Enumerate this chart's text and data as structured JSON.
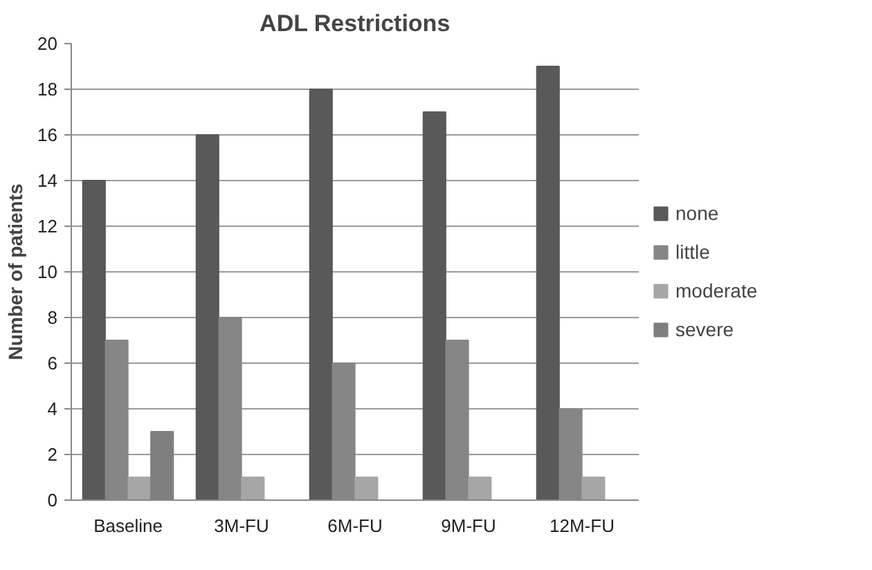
{
  "chart_data": {
    "type": "bar",
    "title": "ADL Restrictions",
    "ylabel": "Number of patients",
    "categories": [
      "Baseline",
      "3M-FU",
      "6M-FU",
      "9M-FU",
      "12M-FU"
    ],
    "series": [
      {
        "name": "none",
        "color": "#595959",
        "values": [
          14,
          16,
          18,
          17,
          19
        ]
      },
      {
        "name": "little",
        "color": "#868686",
        "values": [
          7,
          8,
          6,
          7,
          4
        ]
      },
      {
        "name": "moderate",
        "color": "#a6a6a6",
        "values": [
          1,
          1,
          1,
          1,
          1
        ]
      },
      {
        "name": "severe",
        "color": "#7f7f7f",
        "values": [
          3,
          0,
          0,
          0,
          0
        ]
      }
    ],
    "ylim": [
      0,
      20
    ],
    "yticks": [
      0,
      2,
      4,
      6,
      8,
      10,
      12,
      14,
      16,
      18,
      20
    ],
    "grid": "y",
    "legend": "right"
  }
}
